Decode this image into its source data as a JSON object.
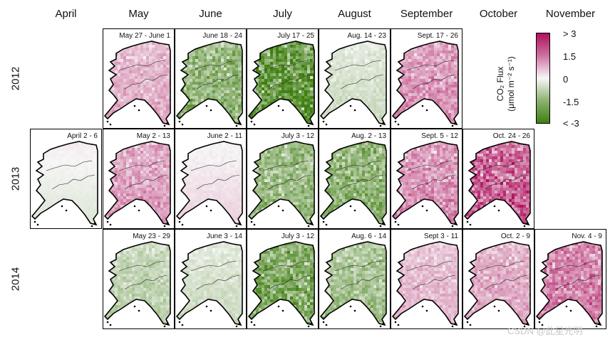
{
  "months": [
    "April",
    "May",
    "June",
    "July",
    "August",
    "September",
    "October",
    "November"
  ],
  "years": [
    "2012",
    "2013",
    "2014"
  ],
  "panels": {
    "2012": [
      {
        "month": "May",
        "dates": "May 27 - June 1",
        "flux": 0.6
      },
      {
        "month": "June",
        "dates": "June 18 - 24",
        "flux": -1.3
      },
      {
        "month": "July",
        "dates": "July 17 - 25",
        "flux": -2.2
      },
      {
        "month": "August",
        "dates": "Aug. 14 - 23",
        "flux": -0.3
      },
      {
        "month": "September",
        "dates": "Sept. 17 - 26",
        "flux": 0.9
      }
    ],
    "2013": [
      {
        "month": "April",
        "dates": "April 2 - 6",
        "flux": -0.05
      },
      {
        "month": "May",
        "dates": "May 2 - 13",
        "flux": 0.8
      },
      {
        "month": "June",
        "dates": "June 2 - 11",
        "flux": 0.1
      },
      {
        "month": "July",
        "dates": "July 3 - 12",
        "flux": -1.2
      },
      {
        "month": "August",
        "dates": "Aug. 2 - 13",
        "flux": -1.4
      },
      {
        "month": "September",
        "dates": "Sept. 5 - 12",
        "flux": 1.0
      },
      {
        "month": "October",
        "dates": "Oct. 24 - 26",
        "flux": 1.6
      }
    ],
    "2014": [
      {
        "month": "May",
        "dates": "May 23 - 29",
        "flux": -0.6
      },
      {
        "month": "June",
        "dates": "June 3 - 14",
        "flux": -0.3
      },
      {
        "month": "July",
        "dates": "July 3 - 12",
        "flux": -1.6
      },
      {
        "month": "August",
        "dates": "Aug. 6 - 14",
        "flux": -1.0
      },
      {
        "month": "September",
        "dates": "Sept 3 - 11",
        "flux": 0.5
      },
      {
        "month": "October",
        "dates": "Oct. 2 - 9",
        "flux": 0.7
      },
      {
        "month": "November",
        "dates": "Nov. 4 - 9",
        "flux": 1.2
      }
    ]
  },
  "colorbar": {
    "title": "CO2 Flux (μmol m⁻² s⁻¹)",
    "title_line1": "CO₂ Flux",
    "title_line2": "(μmol m⁻² s⁻¹)",
    "ticks": [
      "> 3",
      "1.5",
      "0",
      "-1.5",
      "< -3"
    ],
    "range": [
      -3,
      3
    ],
    "colors": {
      "high": "#b0105f",
      "mid": "#f7f7f7",
      "low": "#3f7f10"
    }
  },
  "watermark": "CSDN @此星光明"
}
